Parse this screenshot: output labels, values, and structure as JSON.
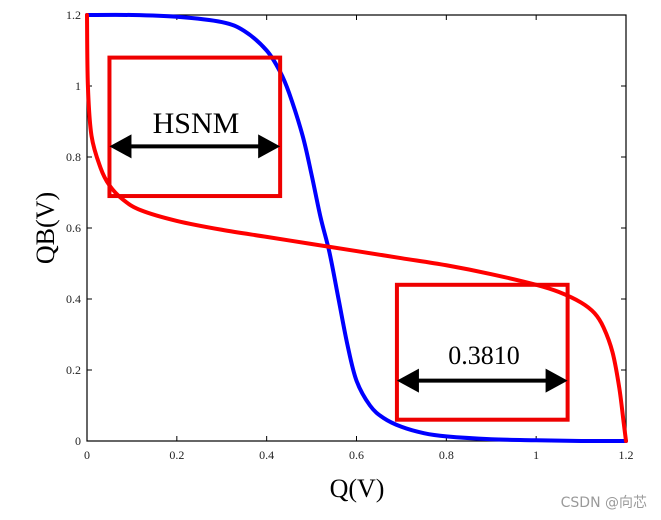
{
  "chart_data": {
    "type": "line",
    "xlabel": "Q(V)",
    "ylabel": "QB(V)",
    "xlim": [
      0,
      1.2
    ],
    "ylim": [
      0,
      1.2
    ],
    "xticks": [
      "0",
      "0.2",
      "0.4",
      "0.6",
      "0.8",
      "1",
      "1.2"
    ],
    "yticks": [
      "0",
      "0.2",
      "0.4",
      "0.6",
      "0.8",
      "1",
      "1.2"
    ],
    "grid": false,
    "series": [
      {
        "color": "#0000ff",
        "x": [
          0,
          0.1,
          0.2,
          0.3,
          0.35,
          0.4,
          0.43,
          0.45,
          0.48,
          0.5,
          0.52,
          0.54,
          0.56,
          0.58,
          0.6,
          0.63,
          0.66,
          0.7,
          0.75,
          0.8,
          0.9,
          1.0,
          1.1,
          1.2
        ],
        "y": [
          1.2,
          1.2,
          1.195,
          1.18,
          1.155,
          1.1,
          1.04,
          0.98,
          0.86,
          0.75,
          0.63,
          0.53,
          0.4,
          0.27,
          0.17,
          0.1,
          0.065,
          0.04,
          0.022,
          0.013,
          0.005,
          0.002,
          0.0,
          0.0
        ]
      },
      {
        "color": "#ff0000",
        "x": [
          0,
          0.002,
          0.01,
          0.03,
          0.05,
          0.08,
          0.12,
          0.2,
          0.3,
          0.4,
          0.5,
          0.6,
          0.7,
          0.8,
          0.9,
          1.0,
          1.05,
          1.1,
          1.13,
          1.15,
          1.17,
          1.185,
          1.195,
          1.2
        ],
        "y": [
          1.2,
          1.0,
          0.86,
          0.77,
          0.72,
          0.68,
          0.65,
          0.62,
          0.595,
          0.575,
          0.555,
          0.535,
          0.515,
          0.495,
          0.47,
          0.44,
          0.42,
          0.39,
          0.36,
          0.32,
          0.25,
          0.15,
          0.05,
          0.0
        ]
      }
    ],
    "annotations": {
      "hsnm_label": "HSNM",
      "value_label": "0.3810"
    },
    "boxes": [
      {
        "x0": 0.05,
        "x1": 0.43,
        "y0": 0.69,
        "y1": 1.08
      },
      {
        "x0": 0.69,
        "x1": 1.07,
        "y0": 0.06,
        "y1": 0.44
      }
    ],
    "arrows": [
      {
        "x0": 0.05,
        "x1": 0.43,
        "y": 0.83
      },
      {
        "x0": 0.69,
        "x1": 1.07,
        "y": 0.17
      }
    ],
    "colors": {
      "box": "#ee0000",
      "arrow": "#000000",
      "axis": "#000000"
    }
  },
  "watermark": "CSDN @向芯"
}
